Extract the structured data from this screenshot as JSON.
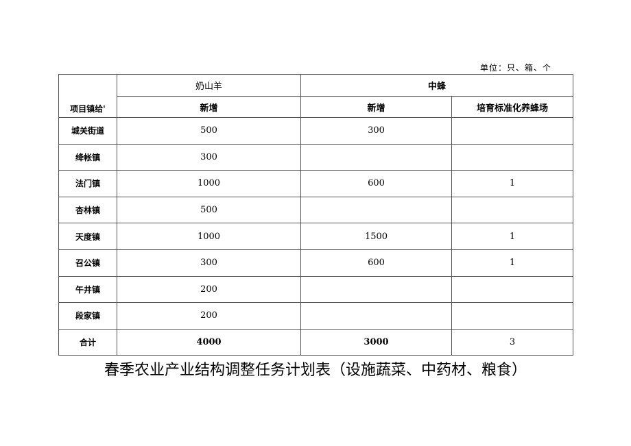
{
  "unit_note": "单位：只、箱、个",
  "table": {
    "corner_header": "项目镇给'",
    "group_headers": [
      "奶山羊",
      "中蜂"
    ],
    "sub_headers": [
      "新增",
      "新增",
      "培育标准化养蜂场"
    ],
    "rows": [
      {
        "town": "城关街道",
        "goat_new": "500",
        "bee_new": "300",
        "bee_farms": ""
      },
      {
        "town": "绛帐镇",
        "goat_new": "300",
        "bee_new": "",
        "bee_farms": ""
      },
      {
        "town": "法门镇",
        "goat_new": "1000",
        "bee_new": "600",
        "bee_farms": "1"
      },
      {
        "town": "杏林镇",
        "goat_new": "500",
        "bee_new": "",
        "bee_farms": ""
      },
      {
        "town": "天度镇",
        "goat_new": "1000",
        "bee_new": "1500",
        "bee_farms": "1"
      },
      {
        "town": "召公镇",
        "goat_new": "300",
        "bee_new": "600",
        "bee_farms": "1"
      },
      {
        "town": "午井镇",
        "goat_new": "200",
        "bee_new": "",
        "bee_farms": ""
      },
      {
        "town": "段家镇",
        "goat_new": "200",
        "bee_new": "",
        "bee_farms": ""
      }
    ],
    "total": {
      "town": "合计",
      "goat_new": "4000",
      "bee_new": "3000",
      "bee_farms": "3"
    }
  },
  "title": "春季农业产业结构调整任务计划表（设施蔬菜、中药材、粮食）"
}
